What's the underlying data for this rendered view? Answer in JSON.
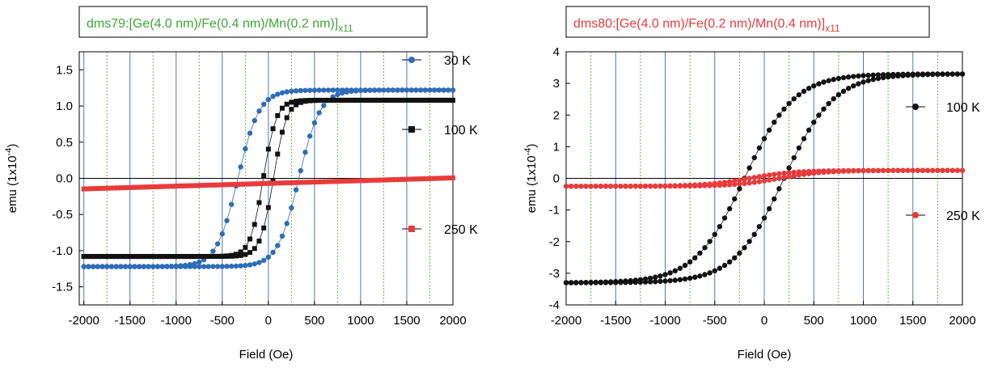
{
  "chart_data": [
    {
      "type": "scatter",
      "title": {
        "main": "dms79:[Ge(4.0 nm)/Fe(0.4 nm)/Mn(0.2 nm)]",
        "sub": "x11"
      },
      "title_color": "#3da63a",
      "xlabel": "Field (Oe)",
      "ylabel": {
        "main": "emu (1x10",
        "sup": "-4",
        "end": ")"
      },
      "xlim": [
        -2050,
        2000
      ],
      "ylim": [
        -1.75,
        1.75
      ],
      "xticks": [
        "-2000",
        "-1500",
        "-1000",
        "-500",
        "0",
        "500",
        "1000",
        "1500",
        "2000"
      ],
      "yticks": [
        "-1.5",
        "-1.0",
        "-0.5",
        "0.0",
        "0.5",
        "1.0",
        "1.5"
      ],
      "ytick_values": [
        -1.5,
        -1.0,
        -0.5,
        0.0,
        0.5,
        1.0,
        1.5
      ],
      "xtick_values": [
        -2000,
        -1500,
        -1000,
        -500,
        0,
        500,
        1000,
        1500,
        2000
      ],
      "grid": "vertical",
      "series": [
        {
          "name": "30 K",
          "color": "#2e6cb8",
          "marker": "circle",
          "Ms": 1.22,
          "Hc": 330,
          "w": 230
        },
        {
          "name": "100 K",
          "color": "#111111",
          "marker": "square",
          "Ms": 1.08,
          "Hc": 55,
          "w": 140
        },
        {
          "name": "250 K",
          "color": "#e83b3b",
          "marker": "square",
          "slope": 3.8e-05,
          "offset": 0.03
        }
      ]
    },
    {
      "type": "scatter",
      "title": {
        "main": "dms80:[Ge(4.0 nm)/Fe(0.2 nm)/Mn(0.4 nm)]",
        "sub": "x11"
      },
      "title_color": "#e83b3b",
      "xlabel": "Field (Oe)",
      "ylabel": {
        "main": "emu (1x10",
        "sup": "-4",
        "end": ")"
      },
      "xlim": [
        -2000,
        2000
      ],
      "ylim": [
        -4,
        4
      ],
      "xticks": [
        "-2000",
        "-1500",
        "-1000",
        "-500",
        "0",
        "500",
        "1000",
        "1500",
        "2000"
      ],
      "yticks": [
        "-4",
        "-3",
        "-2",
        "-1",
        "0",
        "1",
        "2",
        "3",
        "4"
      ],
      "ytick_values": [
        -4,
        -3,
        -2,
        -1,
        0,
        1,
        2,
        3,
        4
      ],
      "xtick_values": [
        -2000,
        -1500,
        -1000,
        -500,
        0,
        500,
        1000,
        1500,
        2000
      ],
      "grid": "vertical",
      "series": [
        {
          "name": "100 K",
          "color": "#111111",
          "marker": "circle",
          "Ms": 3.3,
          "Hc": 200,
          "w": 500
        },
        {
          "name": "250 K",
          "color": "#e83b3b",
          "marker": "circle",
          "Ms": 0.25,
          "Hc": 150,
          "w": 450
        }
      ]
    }
  ]
}
